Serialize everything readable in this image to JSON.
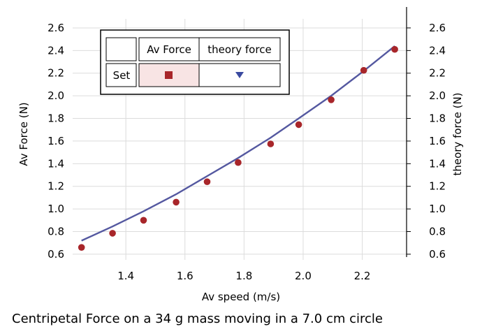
{
  "chart_data": {
    "type": "scatter",
    "caption": "Centripetal Force on a 34 g mass moving in a 7.0 cm circle",
    "xlabel": "Av speed (m/s)",
    "ylabel": "Av Force (N)",
    "y2label": "theory force (N)",
    "xlim": [
      1.22,
      2.35
    ],
    "ylim": [
      0.55,
      2.68
    ],
    "xticks": [
      "1.4",
      "1.6",
      "1.8",
      "2.0",
      "2.2"
    ],
    "yticks": [
      "0.6",
      "0.8",
      "1.0",
      "1.2",
      "1.4",
      "1.6",
      "1.8",
      "2.0",
      "2.2",
      "2.4",
      "2.6"
    ],
    "grid": true,
    "legend": {
      "placement": "top-left",
      "header": [
        "",
        "Av Force",
        "theory force"
      ],
      "row_label": "Set"
    },
    "series": [
      {
        "name": "Av Force",
        "type": "scatter",
        "color": "#a8262a",
        "x": [
          1.25,
          1.355,
          1.46,
          1.57,
          1.675,
          1.78,
          1.89,
          1.985,
          2.095,
          2.205,
          2.31
        ],
        "y": [
          0.66,
          0.785,
          0.9,
          1.06,
          1.24,
          1.41,
          1.575,
          1.745,
          1.965,
          2.225,
          2.41
        ]
      },
      {
        "name": "theory force",
        "type": "line",
        "color": "#5458a0",
        "x": [
          1.25,
          1.355,
          1.46,
          1.57,
          1.675,
          1.78,
          1.89,
          1.985,
          2.095,
          2.205,
          2.31
        ],
        "y": [
          0.72,
          0.845,
          0.98,
          1.13,
          1.29,
          1.45,
          1.63,
          1.8,
          2.0,
          2.22,
          2.44
        ]
      }
    ]
  }
}
